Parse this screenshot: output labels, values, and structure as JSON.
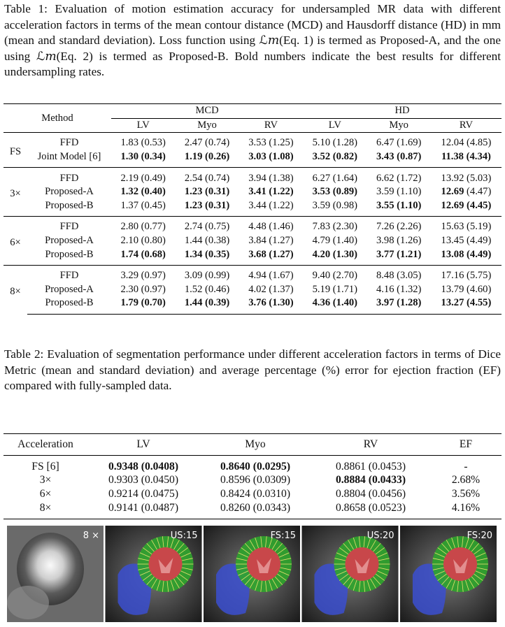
{
  "table1": {
    "caption": "Table 1: Evaluation of motion estimation accuracy for undersampled MR data with different acceleration factors in terms of the mean contour distance (MCD) and Hausdorff distance (HD) in mm (mean and standard deviation). Loss function using ℒ𝑚(Eq. 1) is termed as Proposed-A, and the one using ℒ𝑚(Eq. 2) is termed as Proposed-B. Bold numbers indicate the best results for different undersampling rates.",
    "method_header": "Method",
    "groups_header": [
      "MCD",
      "HD"
    ],
    "sub_header": [
      "LV",
      "Myo",
      "RV",
      "LV",
      "Myo",
      "RV"
    ],
    "groups": [
      {
        "label": "FS",
        "rows": [
          {
            "method": "FFD",
            "cells": [
              {
                "mean": "1.83",
                "sd": "(0.53)"
              },
              {
                "mean": "2.47",
                "sd": "(0.74)"
              },
              {
                "mean": "3.53",
                "sd": "(1.25)"
              },
              {
                "mean": "5.10",
                "sd": "(1.28)"
              },
              {
                "mean": "6.47",
                "sd": "(1.69)"
              },
              {
                "mean": "12.04",
                "sd": "(4.85)"
              }
            ]
          },
          {
            "method": "Joint Model [6]",
            "cells": [
              {
                "mean": "1.30",
                "sd": "(0.34)",
                "bold": [
                  "mean",
                  "sd"
                ]
              },
              {
                "mean": "1.19",
                "sd": "(0.26)",
                "bold": [
                  "mean",
                  "sd"
                ]
              },
              {
                "mean": "3.03",
                "sd": "(1.08)",
                "bold": [
                  "mean",
                  "sd"
                ]
              },
              {
                "mean": "3.52",
                "sd": "(0.82)",
                "bold": [
                  "mean",
                  "sd"
                ]
              },
              {
                "mean": "3.43",
                "sd": "(0.87)",
                "bold": [
                  "mean",
                  "sd"
                ]
              },
              {
                "mean": "11.38",
                "sd": "(4.34)",
                "bold": [
                  "mean",
                  "sd"
                ]
              }
            ]
          }
        ]
      },
      {
        "label": "3×",
        "rows": [
          {
            "method": "FFD",
            "cells": [
              {
                "mean": "2.19",
                "sd": "(0.49)"
              },
              {
                "mean": "2.54",
                "sd": "(0.74)"
              },
              {
                "mean": "3.94",
                "sd": "(1.38)"
              },
              {
                "mean": "6.27",
                "sd": "(1.64)"
              },
              {
                "mean": "6.62",
                "sd": "(1.72)"
              },
              {
                "mean": "13.92",
                "sd": "(5.03)"
              }
            ]
          },
          {
            "method": "Proposed-A",
            "cells": [
              {
                "mean": "1.32",
                "sd": "(0.40)",
                "bold": [
                  "mean",
                  "sd"
                ]
              },
              {
                "mean": "1.23",
                "sd": "(0.31)",
                "bold": [
                  "mean",
                  "sd"
                ]
              },
              {
                "mean": "3.41",
                "sd": "(1.22)",
                "bold": [
                  "mean",
                  "sd"
                ]
              },
              {
                "mean": "3.53",
                "sd": "(0.89)",
                "bold": [
                  "mean",
                  "sd"
                ]
              },
              {
                "mean": "3.59",
                "sd": "(1.10)"
              },
              {
                "mean": "12.69",
                "sd": "(4.47)",
                "bold": [
                  "mean"
                ]
              }
            ]
          },
          {
            "method": "Proposed-B",
            "cells": [
              {
                "mean": "1.37",
                "sd": "(0.45)"
              },
              {
                "mean": "1.23",
                "sd": "(0.31)",
                "bold": [
                  "mean",
                  "sd"
                ]
              },
              {
                "mean": "3.44",
                "sd": "(1.22)"
              },
              {
                "mean": "3.59",
                "sd": "(0.98)"
              },
              {
                "mean": "3.55",
                "sd": "(1.10)",
                "bold": [
                  "mean",
                  "sd"
                ]
              },
              {
                "mean": "12.69",
                "sd": "(4.45)",
                "bold": [
                  "mean",
                  "sd"
                ]
              }
            ]
          }
        ]
      },
      {
        "label": "6×",
        "rows": [
          {
            "method": "FFD",
            "cells": [
              {
                "mean": "2.80",
                "sd": "(0.77)"
              },
              {
                "mean": "2.74",
                "sd": "(0.75)"
              },
              {
                "mean": "4.48",
                "sd": "(1.46)"
              },
              {
                "mean": "7.83",
                "sd": "(2.30)"
              },
              {
                "mean": "7.26",
                "sd": "(2.26)"
              },
              {
                "mean": "15.63",
                "sd": "(5.19)"
              }
            ]
          },
          {
            "method": "Proposed-A",
            "cells": [
              {
                "mean": "2.10",
                "sd": "(0.80)"
              },
              {
                "mean": "1.44",
                "sd": "(0.38)"
              },
              {
                "mean": "3.84",
                "sd": "(1.27)"
              },
              {
                "mean": "4.79",
                "sd": "(1.40)"
              },
              {
                "mean": "3.98",
                "sd": "(1.26)"
              },
              {
                "mean": "13.45",
                "sd": "(4.49)"
              }
            ]
          },
          {
            "method": "Proposed-B",
            "cells": [
              {
                "mean": "1.74",
                "sd": "(0.68)",
                "bold": [
                  "mean",
                  "sd"
                ]
              },
              {
                "mean": "1.34",
                "sd": "(0.35)",
                "bold": [
                  "mean",
                  "sd"
                ]
              },
              {
                "mean": "3.68",
                "sd": "(1.27)",
                "bold": [
                  "mean",
                  "sd"
                ]
              },
              {
                "mean": "4.20",
                "sd": "(1.30)",
                "bold": [
                  "mean",
                  "sd"
                ]
              },
              {
                "mean": "3.77",
                "sd": "(1.21)",
                "bold": [
                  "mean",
                  "sd"
                ]
              },
              {
                "mean": "13.08",
                "sd": "(4.49)",
                "bold": [
                  "mean",
                  "sd"
                ]
              }
            ]
          }
        ]
      },
      {
        "label": "8×",
        "rows": [
          {
            "method": "FFD",
            "cells": [
              {
                "mean": "3.29",
                "sd": "(0.97)"
              },
              {
                "mean": "3.09",
                "sd": "(0.99)"
              },
              {
                "mean": "4.94",
                "sd": "(1.67)"
              },
              {
                "mean": "9.40",
                "sd": "(2.70)"
              },
              {
                "mean": "8.48",
                "sd": "(3.05)"
              },
              {
                "mean": "17.16",
                "sd": "(5.75)"
              }
            ]
          },
          {
            "method": "Proposed-A",
            "cells": [
              {
                "mean": "2.30",
                "sd": "(0.97)"
              },
              {
                "mean": "1.52",
                "sd": "(0.46)"
              },
              {
                "mean": "4.02",
                "sd": "(1.37)"
              },
              {
                "mean": "5.19",
                "sd": "(1.71)"
              },
              {
                "mean": "4.16",
                "sd": "(1.32)"
              },
              {
                "mean": "13.79",
                "sd": "(4.60)"
              }
            ]
          },
          {
            "method": "Proposed-B",
            "cells": [
              {
                "mean": "1.79",
                "sd": "(0.70)",
                "bold": [
                  "mean",
                  "sd"
                ]
              },
              {
                "mean": "1.44",
                "sd": "(0.39)",
                "bold": [
                  "mean",
                  "sd"
                ]
              },
              {
                "mean": "3.76",
                "sd": "(1.30)",
                "bold": [
                  "mean",
                  "sd"
                ]
              },
              {
                "mean": "4.36",
                "sd": "(1.40)",
                "bold": [
                  "mean",
                  "sd"
                ]
              },
              {
                "mean": "3.97",
                "sd": "(1.28)",
                "bold": [
                  "mean",
                  "sd"
                ]
              },
              {
                "mean": "13.27",
                "sd": "(4.55)",
                "bold": [
                  "mean",
                  "sd"
                ]
              }
            ]
          }
        ]
      }
    ]
  },
  "table2": {
    "caption": "Table 2: Evaluation of segmentation performance under different acceleration factors in terms of Dice Metric (mean and standard deviation) and average percentage (%) error for ejection fraction (EF) compared with fully-sampled data.",
    "header": [
      "Acceleration",
      "LV",
      "Myo",
      "RV",
      "EF"
    ],
    "rows": [
      [
        "FS [6]",
        {
          "text": "0.9348 (0.0408)",
          "bold": true
        },
        {
          "text": "0.8640 (0.0295)",
          "bold": true
        },
        "0.8861 (0.0453)",
        "-"
      ],
      [
        "3×",
        "0.9303 (0.0450)",
        "0.8596 (0.0309)",
        {
          "text": "0.8884 (0.0433)",
          "bold": true
        },
        "2.68%"
      ],
      [
        "6×",
        "0.9214 (0.0475)",
        "0.8424 (0.0310)",
        "0.8804 (0.0456)",
        "3.56%"
      ],
      [
        "8×",
        "0.9141 (0.0487)",
        "0.8260 (0.0343)",
        "0.8658 (0.0523)",
        "4.16%"
      ]
    ]
  },
  "figure": {
    "panel_labels": [
      "8 ×",
      "US:15",
      "FS:15",
      "US:20",
      "FS:20"
    ]
  }
}
